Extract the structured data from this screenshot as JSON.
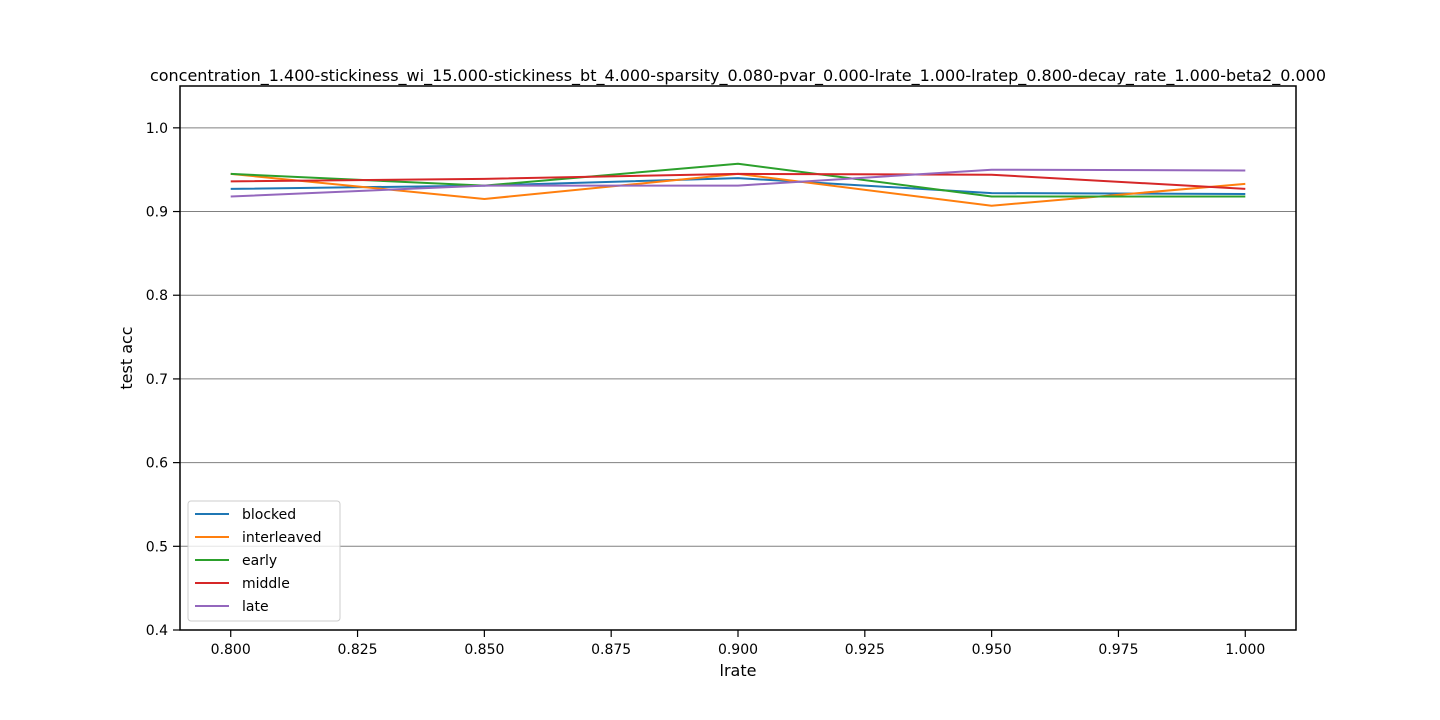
{
  "chart_data": {
    "type": "line",
    "title": "concentration_1.400-stickiness_wi_15.000-stickiness_bt_4.000-sparsity_0.080-pvar_0.000-lrate_1.000-lratep_0.800-decay_rate_1.000-beta2_0.000",
    "xlabel": "lrate",
    "ylabel": "test acc",
    "x": [
      0.8,
      0.85,
      0.9,
      0.95,
      1.0
    ],
    "xlim": [
      0.79,
      1.01
    ],
    "ylim": [
      0.4,
      1.05
    ],
    "xticks": [
      0.8,
      0.825,
      0.85,
      0.875,
      0.9,
      0.925,
      0.95,
      0.975,
      1.0
    ],
    "xtick_labels": [
      "0.800",
      "0.825",
      "0.850",
      "0.875",
      "0.900",
      "0.925",
      "0.950",
      "0.975",
      "1.000"
    ],
    "yticks": [
      0.4,
      0.5,
      0.6,
      0.7,
      0.8,
      0.9,
      1.0
    ],
    "ytick_labels": [
      "0.4",
      "0.5",
      "0.6",
      "0.7",
      "0.8",
      "0.9",
      "1.0"
    ],
    "grid": "horizontal",
    "legend_position": "lower-left",
    "series": [
      {
        "name": "blocked",
        "color": "#1f77b4",
        "values": [
          0.927,
          0.931,
          0.94,
          0.922,
          0.921
        ]
      },
      {
        "name": "interleaved",
        "color": "#ff7f0e",
        "values": [
          0.945,
          0.915,
          0.945,
          0.907,
          0.933
        ]
      },
      {
        "name": "early",
        "color": "#2ca02c",
        "values": [
          0.945,
          0.931,
          0.957,
          0.918,
          0.918
        ]
      },
      {
        "name": "middle",
        "color": "#d62728",
        "values": [
          0.936,
          0.939,
          0.945,
          0.944,
          0.927
        ]
      },
      {
        "name": "late",
        "color": "#9467bd",
        "values": [
          0.918,
          0.931,
          0.931,
          0.95,
          0.949
        ]
      }
    ]
  }
}
